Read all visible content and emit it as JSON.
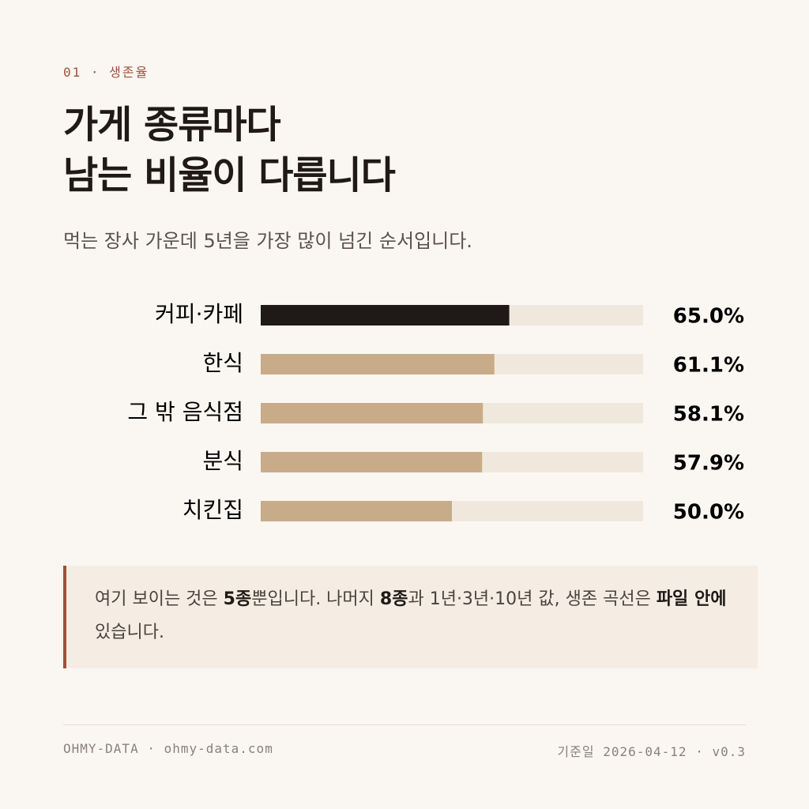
{
  "eyebrow": "01 · 생존율",
  "chart_data": {
    "type": "bar",
    "orientation": "horizontal",
    "title": [
      "가게 종류마다",
      "남는 비율이 다릅니다"
    ],
    "subtitle": "먹는 장사 가운데 5년을 가장 많이 넘긴 순서입니다.",
    "categories": [
      "커피·카페",
      "한식",
      "그 밖 음식점",
      "분식",
      "치킨집"
    ],
    "values": [
      65.0,
      61.1,
      58.1,
      57.9,
      50.0
    ],
    "value_labels": [
      "65.0%",
      "61.1%",
      "58.1%",
      "57.9%",
      "50.0%"
    ],
    "colors": [
      "#1f1a17",
      "#c8ab88",
      "#c8ab88",
      "#c8ab88",
      "#c8ab88"
    ],
    "track_color": "#f0e8dc",
    "xlim": [
      0,
      100
    ]
  },
  "note": {
    "segments": [
      {
        "text": "여기 보이는 것은 ",
        "bold": false
      },
      {
        "text": "5종",
        "bold": true
      },
      {
        "text": "뿐입니다. 나머지 ",
        "bold": false
      },
      {
        "text": "8종",
        "bold": true
      },
      {
        "text": "과 1년·3년·10년 값, 생존 곡선은 ",
        "bold": false
      },
      {
        "text": "파일 안에",
        "bold": true
      },
      {
        "text": " 있습니다.",
        "bold": false
      }
    ]
  },
  "footer": {
    "left": "OHMY-DATA · ohmy-data.com",
    "right_label": "기준일",
    "right": "2026-04-12 · v0.3"
  }
}
